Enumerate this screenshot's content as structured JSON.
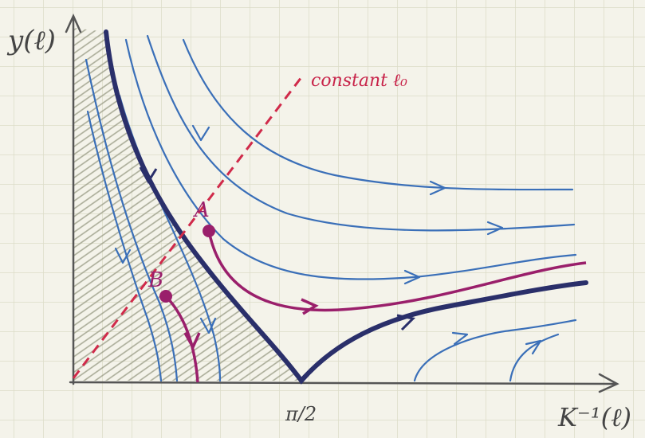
{
  "axes": {
    "y_label": "y(ℓ)",
    "x_label": "K⁻¹(ℓ)",
    "x_mark": "π/2"
  },
  "annotation": "constant ℓ₀",
  "points": [
    {
      "label": "A"
    },
    {
      "label": "B"
    }
  ]
}
